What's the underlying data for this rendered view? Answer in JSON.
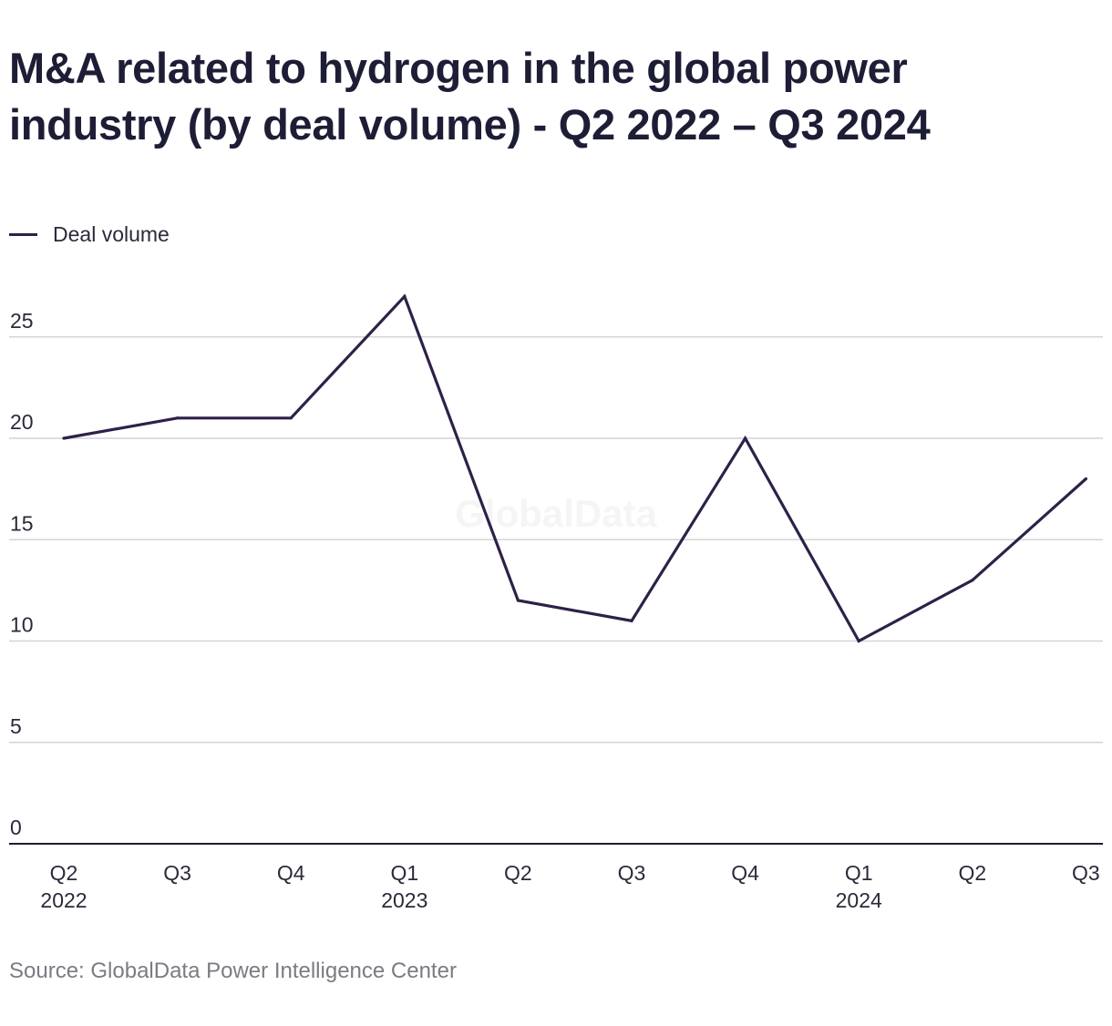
{
  "chart_data": {
    "type": "line",
    "title": "M&A related to hydrogen in the global power industry (by deal volume) - Q2 2022 – Q3 2024",
    "categories": [
      "Q2 2022",
      "Q3 2022",
      "Q4 2022",
      "Q1 2023",
      "Q2 2023",
      "Q3 2023",
      "Q4 2023",
      "Q1 2024",
      "Q2 2024",
      "Q3 2024"
    ],
    "tick_labels": [
      {
        "quarter": "Q2",
        "year": "2022"
      },
      {
        "quarter": "Q3",
        "year": ""
      },
      {
        "quarter": "Q4",
        "year": ""
      },
      {
        "quarter": "Q1",
        "year": "2023"
      },
      {
        "quarter": "Q2",
        "year": ""
      },
      {
        "quarter": "Q3",
        "year": ""
      },
      {
        "quarter": "Q4",
        "year": ""
      },
      {
        "quarter": "Q1",
        "year": "2024"
      },
      {
        "quarter": "Q2",
        "year": ""
      },
      {
        "quarter": "Q3",
        "year": ""
      }
    ],
    "series": [
      {
        "name": "Deal volume",
        "values": [
          20,
          21,
          21,
          27,
          12,
          11,
          20,
          10,
          13,
          18
        ]
      }
    ],
    "ylim": [
      0,
      25
    ],
    "yticks": [
      0,
      5,
      10,
      15,
      20,
      25
    ],
    "xlabel": "",
    "ylabel": "",
    "grid": true,
    "legend_position": "top-left",
    "line_color": "#2e2148",
    "grid_color": "#d4d4d8",
    "axis_color": "#1e1d36",
    "watermark": "GlobalData"
  },
  "source": "Source: GlobalData Power Intelligence Center"
}
